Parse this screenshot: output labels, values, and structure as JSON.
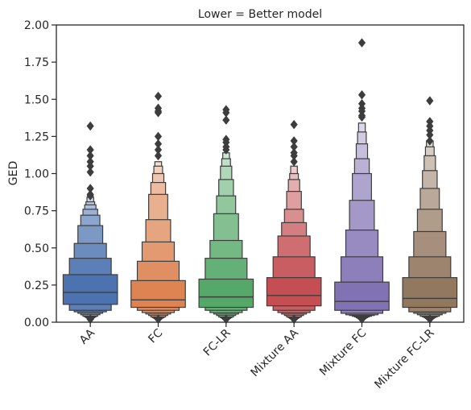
{
  "chart_data": {
    "type": "boxen",
    "title": "Lower = Better model",
    "xlabel": "",
    "ylabel": "GED",
    "ylim": [
      0,
      2.0
    ],
    "yticks": [
      0.0,
      0.25,
      0.5,
      0.75,
      1.0,
      1.25,
      1.5,
      1.75,
      2.0
    ],
    "ytick_labels": [
      "0.00",
      "0.25",
      "0.50",
      "0.75",
      "1.00",
      "1.25",
      "1.50",
      "1.75",
      "2.00"
    ],
    "grid": false,
    "categories": [
      "AA",
      "FC",
      "FC-LR",
      "Mixture AA",
      "Mixture FC",
      "Mixture FC-LR"
    ],
    "series": [
      {
        "category": "AA",
        "color": "#4c72b0",
        "median": 0.2,
        "levels": [
          [
            0.12,
            0.32
          ],
          [
            0.08,
            0.43
          ],
          [
            0.07,
            0.53
          ],
          [
            0.06,
            0.65
          ],
          [
            0.05,
            0.72
          ],
          [
            0.04,
            0.76
          ],
          [
            0.035,
            0.79
          ],
          [
            0.03,
            0.81
          ],
          [
            0.025,
            0.84
          ]
        ],
        "outliers": [
          1.32,
          1.16,
          1.12,
          1.08,
          1.05,
          1.01,
          0.9,
          0.86,
          0.85,
          0.02,
          0.02
        ]
      },
      {
        "category": "FC",
        "color": "#dd8452",
        "median": 0.15,
        "levels": [
          [
            0.1,
            0.28
          ],
          [
            0.08,
            0.41
          ],
          [
            0.065,
            0.54
          ],
          [
            0.055,
            0.69
          ],
          [
            0.045,
            0.86
          ],
          [
            0.035,
            0.94
          ],
          [
            0.03,
            1.0
          ],
          [
            0.025,
            1.05
          ],
          [
            0.02,
            1.08
          ]
        ],
        "outliers": [
          1.52,
          1.44,
          1.42,
          1.41,
          1.25,
          1.2,
          1.16,
          1.12,
          0.02,
          0.02
        ]
      },
      {
        "category": "FC-LR",
        "color": "#55a868",
        "median": 0.17,
        "levels": [
          [
            0.1,
            0.29
          ],
          [
            0.08,
            0.43
          ],
          [
            0.065,
            0.55
          ],
          [
            0.055,
            0.73
          ],
          [
            0.045,
            0.85
          ],
          [
            0.035,
            0.96
          ],
          [
            0.03,
            1.05
          ],
          [
            0.025,
            1.1
          ],
          [
            0.02,
            1.14
          ]
        ],
        "outliers": [
          1.43,
          1.41,
          1.36,
          1.23,
          1.21,
          1.18,
          1.16,
          0.02,
          0.02
        ]
      },
      {
        "category": "Mixture AA",
        "color": "#c44e52",
        "median": 0.18,
        "levels": [
          [
            0.11,
            0.3
          ],
          [
            0.08,
            0.44
          ],
          [
            0.065,
            0.58
          ],
          [
            0.055,
            0.67
          ],
          [
            0.045,
            0.76
          ],
          [
            0.035,
            0.88
          ],
          [
            0.03,
            0.96
          ],
          [
            0.025,
            1.0
          ],
          [
            0.02,
            1.05
          ]
        ],
        "outliers": [
          1.33,
          1.22,
          1.18,
          1.14,
          1.12,
          1.08,
          0.02,
          0.02
        ]
      },
      {
        "category": "Mixture FC",
        "color": "#8172b3",
        "median": 0.14,
        "levels": [
          [
            0.08,
            0.27
          ],
          [
            0.06,
            0.44
          ],
          [
            0.05,
            0.62
          ],
          [
            0.045,
            0.82
          ],
          [
            0.04,
            1.0
          ],
          [
            0.035,
            1.1
          ],
          [
            0.03,
            1.2
          ],
          [
            0.025,
            1.28
          ],
          [
            0.02,
            1.34
          ]
        ],
        "outliers": [
          1.88,
          1.53,
          1.47,
          1.44,
          1.42,
          1.39,
          1.38,
          0.02,
          0.02
        ]
      },
      {
        "category": "Mixture FC-LR",
        "color": "#937860",
        "median": 0.16,
        "levels": [
          [
            0.1,
            0.3
          ],
          [
            0.07,
            0.44
          ],
          [
            0.06,
            0.61
          ],
          [
            0.05,
            0.76
          ],
          [
            0.04,
            0.9
          ],
          [
            0.035,
            1.02
          ],
          [
            0.03,
            1.12
          ],
          [
            0.025,
            1.18
          ],
          [
            0.02,
            1.22
          ]
        ],
        "outliers": [
          1.49,
          1.35,
          1.32,
          1.29,
          1.26,
          1.22,
          0.02,
          0.02
        ]
      }
    ]
  }
}
